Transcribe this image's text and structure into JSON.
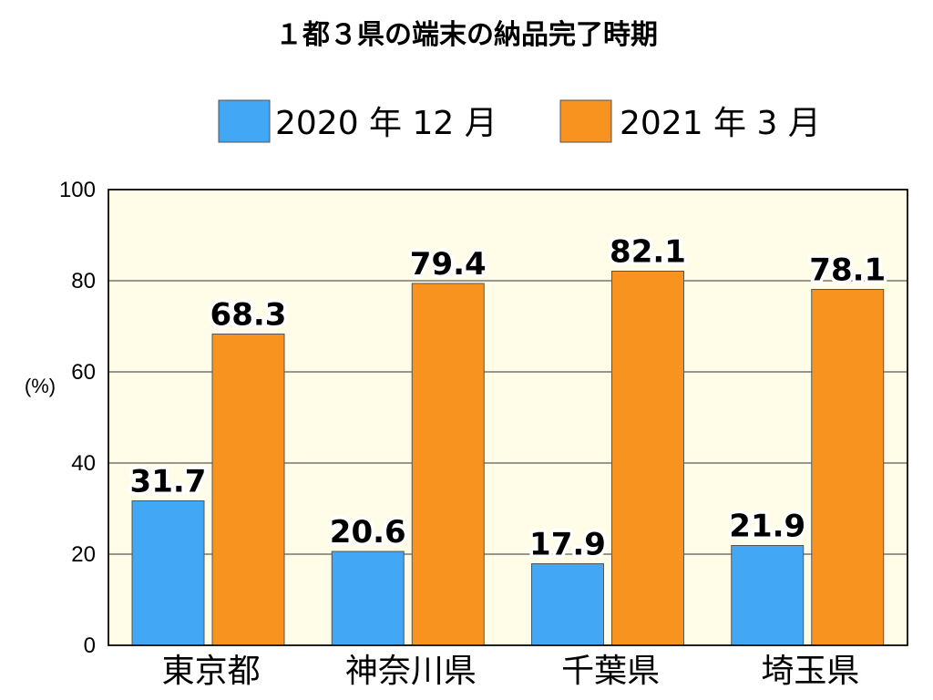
{
  "chart_data": {
    "type": "bar",
    "title": "１都３県の端末の納品完了時期",
    "ylabel": "(%)",
    "categories": [
      "東京都",
      "神奈川県",
      "千葉県",
      "埼玉県"
    ],
    "series": [
      {
        "name": "2020 年 12 月",
        "color": "#42a7f5",
        "values": [
          31.7,
          20.6,
          17.9,
          21.9
        ],
        "labels": [
          "31.7",
          "20.6",
          "17.9",
          "21.9"
        ]
      },
      {
        "name": "2021 年 3 月",
        "color": "#f7931e",
        "values": [
          68.3,
          79.4,
          82.1,
          78.1
        ],
        "labels": [
          "68.3",
          "79.4",
          "82.1",
          "78.1"
        ]
      }
    ],
    "ylim": [
      0,
      100
    ],
    "yticks": [
      0,
      20,
      40,
      60,
      80,
      100
    ],
    "grid": true,
    "legend_position": "top",
    "plot_background": "#fffde8"
  }
}
